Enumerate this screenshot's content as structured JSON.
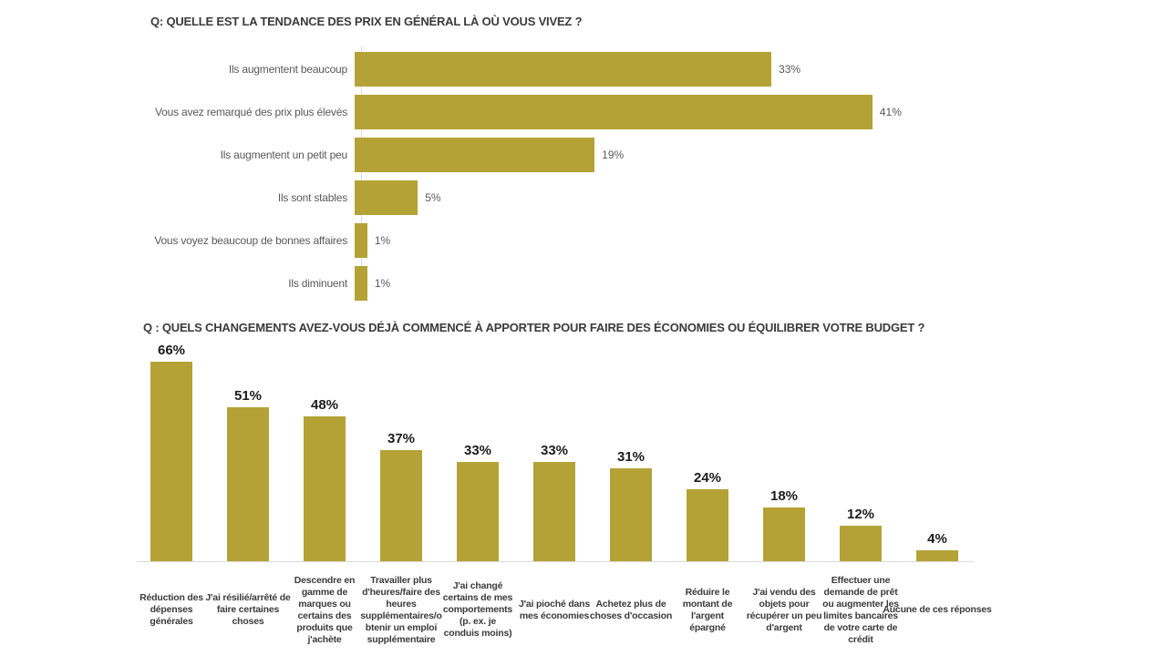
{
  "colors": {
    "bar": "#b4a236",
    "axis_line": "#d9d9d9",
    "title_text": "#3b3b3b",
    "chart1_label": "#595959",
    "chart1_value": "#595959",
    "chart2_value": "#1c1c1c",
    "chart2_label": "#3b3b3b",
    "background": "#ffffff"
  },
  "chart_data": [
    {
      "id": "price-trend",
      "type": "bar",
      "orientation": "horizontal",
      "title": "Q: QUELLE EST LA TENDANCE DES PRIX EN GÉNÉRAL LÀ OÙ VOUS VIVEZ ?",
      "categories": [
        "Ils augmentent beaucoup",
        "Vous avez remarqué des prix plus élevés",
        "Ils augmentent un petit peu",
        "Ils sont stables",
        "Vous voyez beaucoup de bonnes affaires",
        "Ils diminuent"
      ],
      "values": [
        33,
        41,
        19,
        5,
        1,
        1
      ],
      "value_labels": [
        "33%",
        "41%",
        "19%",
        "5%",
        "1%",
        "1%"
      ],
      "value_suffix": "%",
      "xlim": [
        0,
        41
      ],
      "grid": false,
      "legend": false
    },
    {
      "id": "budget-changes",
      "type": "bar",
      "orientation": "vertical",
      "title": "Q : QUELS CHANGEMENTS AVEZ-VOUS DÉJÀ COMMENCÉ À APPORTER POUR FAIRE DES ÉCONOMIES OU ÉQUILIBRER VOTRE BUDGET ?",
      "categories": [
        "Réduction des\ndépenses\ngénérales",
        "J'ai résilié/arrêté de\nfaire certaines\nchoses",
        "Descendre en\ngamme de\nmarques ou\ncertains des\nproduits que\nj'achète",
        "Travailler plus\nd'heures/faire des\nheures\nsupplémentaires/o\nbtenir un emploi\nsupplémentaire",
        "J'ai changé\ncertains de mes\ncomportements\n(p. ex. je\nconduis moins)",
        "J'ai pioché dans\nmes économies",
        "Achetez plus de\nchoses d'occasion",
        "Réduire le\nmontant de\nl'argent\népargné",
        "J'ai vendu des\nobjets pour\nrécupérer un peu\nd'argent",
        "Effectuer une\ndemande de prêt\nou augmenter les\nlimites bancaires\nde votre carte de\ncrédit",
        "Aucune de ces réponses"
      ],
      "values": [
        66,
        51,
        48,
        37,
        33,
        33,
        31,
        24,
        18,
        12,
        4
      ],
      "value_labels": [
        "66%",
        "51%",
        "48%",
        "37%",
        "33%",
        "33%",
        "31%",
        "24%",
        "18%",
        "12%",
        "4%"
      ],
      "value_suffix": "%",
      "ylim": [
        0,
        70
      ],
      "grid": false,
      "legend": false
    }
  ]
}
